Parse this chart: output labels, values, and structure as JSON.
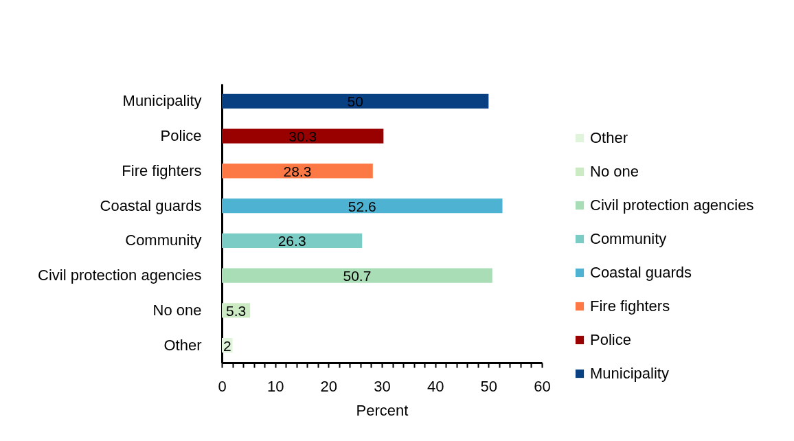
{
  "chart_data": {
    "type": "bar",
    "orientation": "horizontal",
    "xlabel": "Percent",
    "categories": [
      "Municipality",
      "Police",
      "Fire fighters",
      "Coastal guards",
      "Community",
      "Civil protection agencies",
      "No one",
      "Other"
    ],
    "series": [
      {
        "name": "Other",
        "color": "#e0f3db",
        "values": [
          null,
          null,
          null,
          null,
          null,
          null,
          null,
          2
        ]
      },
      {
        "name": "No one",
        "color": "#ccebc5",
        "values": [
          null,
          null,
          null,
          null,
          null,
          null,
          5.3,
          null
        ]
      },
      {
        "name": "Civil protection agencies",
        "color": "#a8ddb5",
        "values": [
          null,
          null,
          null,
          null,
          null,
          50.7,
          null,
          null
        ]
      },
      {
        "name": "Community",
        "color": "#7bccc4",
        "values": [
          null,
          null,
          null,
          null,
          26.3,
          null,
          null,
          null
        ]
      },
      {
        "name": "Coastal guards",
        "color": "#4eb3d3",
        "values": [
          null,
          null,
          null,
          52.6,
          null,
          null,
          null,
          null
        ]
      },
      {
        "name": "Fire fighters",
        "color": "#fc7844",
        "values": [
          null,
          null,
          28.3,
          null,
          null,
          null,
          null,
          null
        ]
      },
      {
        "name": "Police",
        "color": "#990000",
        "values": [
          null,
          30.3,
          null,
          null,
          null,
          null,
          null,
          null
        ]
      },
      {
        "name": "Municipality",
        "color": "#084081",
        "values": [
          50,
          null,
          null,
          null,
          null,
          null,
          null,
          null
        ]
      }
    ],
    "xlim": [
      0,
      60
    ],
    "xticks": [
      0,
      {
        "value": 2,
        "label": null
      },
      {
        "value": 4,
        "label": null
      },
      {
        "value": 6,
        "label": null
      },
      {
        "value": 8,
        "label": null
      },
      10,
      {
        "value": 12,
        "label": null
      },
      {
        "value": 14,
        "label": null
      },
      {
        "value": 16,
        "label": null
      },
      {
        "value": 18,
        "label": null
      },
      20,
      {
        "value": 22,
        "label": null
      },
      {
        "value": 24,
        "label": null
      },
      {
        "value": 26,
        "label": null
      },
      {
        "value": 28,
        "label": null
      },
      30,
      {
        "value": 32,
        "label": null
      },
      {
        "value": 34,
        "label": null
      },
      {
        "value": 36,
        "label": null
      },
      {
        "value": 38,
        "label": null
      },
      40,
      {
        "value": 42,
        "label": null
      },
      {
        "value": 44,
        "label": null
      },
      {
        "value": 46,
        "label": null
      },
      {
        "value": 48,
        "label": null
      },
      50,
      {
        "value": 52,
        "label": null
      },
      {
        "value": 54,
        "label": null
      },
      {
        "value": 56,
        "label": null
      },
      {
        "value": 58,
        "label": null
      },
      60
    ],
    "data_labels": true,
    "grid": false,
    "legend": "right"
  }
}
